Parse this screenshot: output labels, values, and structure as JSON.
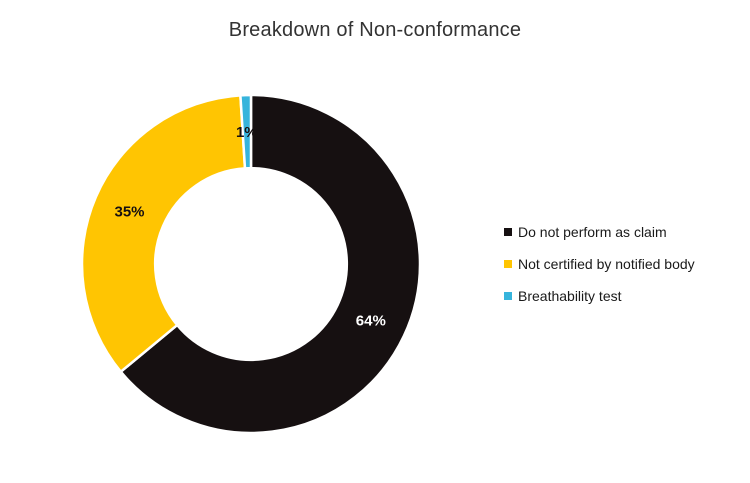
{
  "chart_data": {
    "type": "pie",
    "subtype": "donut",
    "title": "Breakdown of Non-conformance",
    "units": "%",
    "legend_position": "right",
    "direction": "clockwise",
    "start_angle_deg": 0,
    "hole_ratio": 0.567,
    "slices": [
      {
        "label": "Do not perform as claim",
        "value": 64,
        "display": "64%",
        "color": "#161011",
        "label_color": "#ffffff"
      },
      {
        "label": "Not certified by notified body",
        "value": 35,
        "display": "35%",
        "color": "#ffc502",
        "label_color": "#161011"
      },
      {
        "label": "Breathability test",
        "value": 1,
        "display": "1%",
        "color": "#36b4dc",
        "label_color": "#161011"
      }
    ]
  },
  "style": {
    "background": "#ffffff",
    "title_color": "#333333",
    "legend_text_color": "#1a1a1a",
    "slice_border_color": "#ffffff"
  }
}
